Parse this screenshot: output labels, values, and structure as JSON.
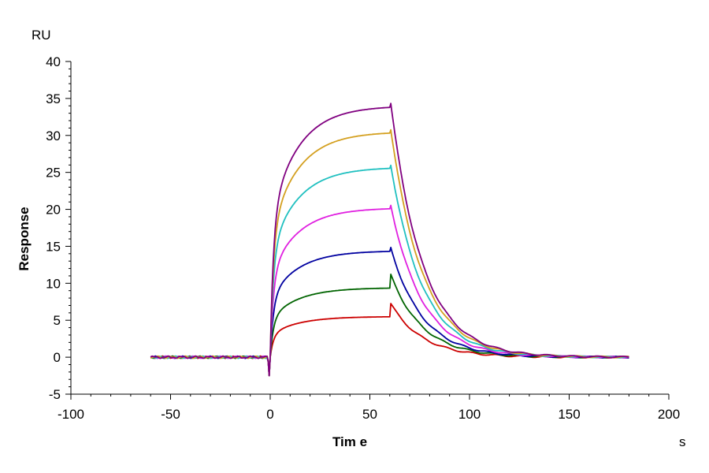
{
  "chart_data": {
    "type": "line",
    "xlabel": "Tim e",
    "ylabel": "Response",
    "x_unit": "s",
    "y_unit": "RU",
    "xlim": [
      -100,
      200
    ],
    "ylim": [
      -5,
      40
    ],
    "x_ticks": [
      -100,
      -50,
      0,
      50,
      100,
      150,
      200
    ],
    "y_ticks": [
      -5,
      0,
      5,
      10,
      15,
      20,
      25,
      30,
      35,
      40
    ],
    "x_minor_step": 10,
    "y_minor_step": 1,
    "grid": false,
    "series": [
      {
        "color": "#cc0000",
        "plateau": 5.5,
        "t_start": -60,
        "t_end": 180
      },
      {
        "color": "#006400",
        "plateau": 9.4,
        "t_start": -60,
        "t_end": 180
      },
      {
        "color": "#0000a0",
        "plateau": 14.4,
        "t_start": -60,
        "t_end": 180
      },
      {
        "color": "#e020e0",
        "plateau": 20.2,
        "t_start": -60,
        "t_end": 180
      },
      {
        "color": "#20c0c0",
        "plateau": 25.7,
        "t_start": -60,
        "t_end": 180
      },
      {
        "color": "#d4a020",
        "plateau": 30.5,
        "t_start": -60,
        "t_end": 180
      },
      {
        "color": "#800080",
        "plateau": 34.0,
        "t_start": -60,
        "t_end": 180
      }
    ],
    "association_start": 0,
    "dissociation_start": 60
  }
}
